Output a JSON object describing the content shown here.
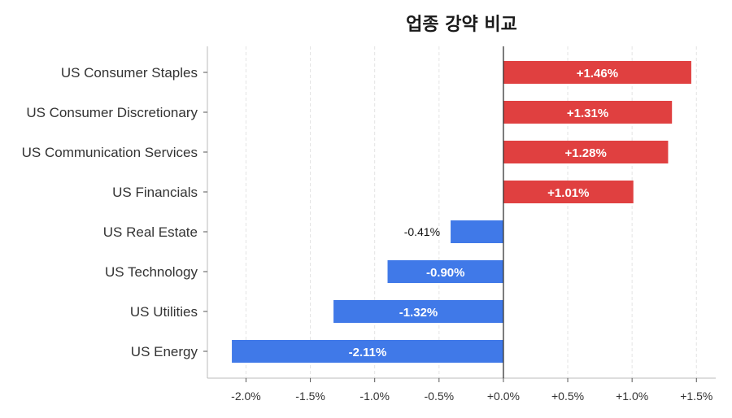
{
  "chart_data": {
    "type": "bar",
    "orientation": "horizontal",
    "title": "업종 강약 비교",
    "categories": [
      "US Consumer Staples",
      "US Consumer Discretionary",
      "US Communication Services",
      "US Financials",
      "US Real Estate",
      "US Technology",
      "US Utilities",
      "US Energy"
    ],
    "values": [
      1.46,
      1.31,
      1.28,
      1.01,
      -0.41,
      -0.9,
      -1.32,
      -2.11
    ],
    "data_labels": [
      "+1.46%",
      "+1.31%",
      "+1.28%",
      "+1.01%",
      "-0.41%",
      "-0.90%",
      "-1.32%",
      "-2.11%"
    ],
    "xlim": [
      -2.3,
      1.65
    ],
    "xticks": [
      -2.0,
      -1.5,
      -1.0,
      -0.5,
      0.0,
      0.5,
      1.0,
      1.5
    ],
    "xtick_labels": [
      "-2.0%",
      "-1.5%",
      "-1.0%",
      "-0.5%",
      "+0.0%",
      "+0.5%",
      "+1.0%",
      "+1.5%"
    ],
    "xlabel": "",
    "ylabel": "",
    "grid": "vertical dashed",
    "colors": {
      "positive": "#e04040",
      "negative": "#4079e8",
      "zero_line": "#333333",
      "axis": "#bbbbbb",
      "grid": "#e3e3e3"
    }
  }
}
